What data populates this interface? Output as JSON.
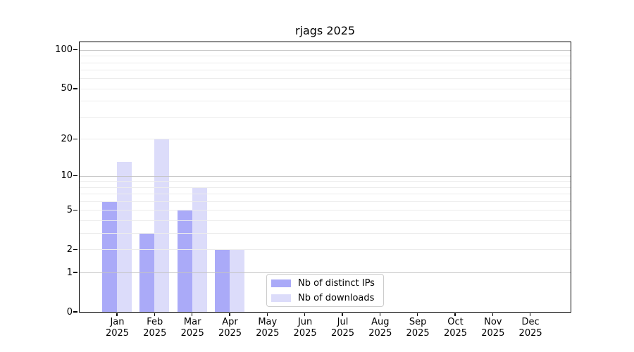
{
  "title": "rjags 2025",
  "chart_data": {
    "type": "bar",
    "title": "rjags 2025",
    "x_categories": [
      "Jan",
      "Feb",
      "Mar",
      "Apr",
      "May",
      "Jun",
      "Jul",
      "Aug",
      "Sep",
      "Oct",
      "Nov",
      "Dec"
    ],
    "x_sublabel": "2025",
    "series": [
      {
        "name": "Nb of distinct IPs",
        "color": "#aaaaf8",
        "values": [
          6,
          3,
          5,
          2,
          0,
          0,
          0,
          0,
          0,
          0,
          0,
          0
        ]
      },
      {
        "name": "Nb of downloads",
        "color": "#dcdcfa",
        "values": [
          13,
          20,
          8,
          2,
          0,
          0,
          0,
          0,
          0,
          0,
          0,
          0
        ]
      }
    ],
    "y_axis": {
      "scale": "log10(1+y)",
      "tick_labels": [
        "0",
        "1",
        "2",
        "5",
        "10",
        "20",
        "50",
        "100"
      ],
      "tick_values": [
        0,
        1,
        2,
        5,
        10,
        20,
        50,
        100
      ],
      "major_gridlines": [
        1,
        10,
        100
      ],
      "minor_gridlines": [
        2,
        3,
        4,
        5,
        6,
        7,
        8,
        9,
        20,
        30,
        40,
        50,
        60,
        70,
        80,
        90
      ],
      "y_top_visible": 115
    },
    "legend": {
      "entries": [
        "Nb of distinct IPs",
        "Nb of downloads"
      ],
      "position": "inside-bottom-center"
    },
    "colors": {
      "axis": "#000000",
      "major_grid": "#c4c4c4",
      "minor_grid": "#ececec",
      "legend_border": "#cccccc",
      "background": "#ffffff"
    },
    "gridlines_above_bars": true
  }
}
